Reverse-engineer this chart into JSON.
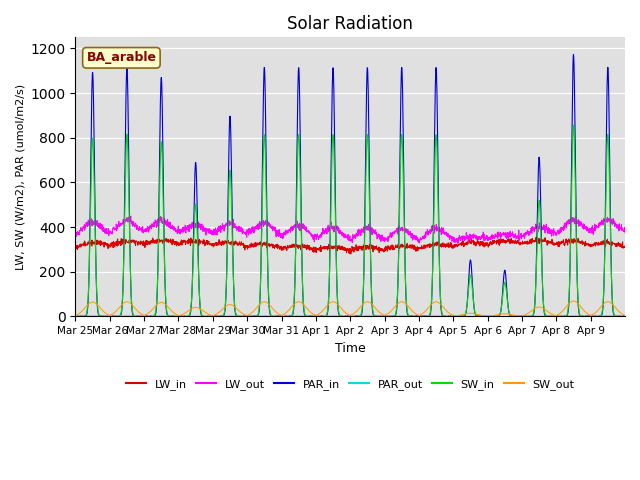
{
  "title": "Solar Radiation",
  "xlabel": "Time",
  "ylabel": "LW, SW (W/m2), PAR (umol/m2/s)",
  "annotation": "BA_arable",
  "ylim": [
    0,
    1250
  ],
  "background_color": "#e0e0e0",
  "series_colors": {
    "LW_in": "#dd0000",
    "LW_out": "#ff00ff",
    "PAR_in": "#0000dd",
    "PAR_out": "#00dddd",
    "SW_in": "#00dd00",
    "SW_out": "#ff9900"
  },
  "x_tick_labels": [
    "Mar 25",
    "Mar 26",
    "Mar 27",
    "Mar 28",
    "Mar 29",
    "Mar 30",
    "Mar 31",
    "Apr 1",
    "Apr 2",
    "Apr 3",
    "Apr 4",
    "Apr 5",
    "Apr 6",
    "Apr 7",
    "Apr 8",
    "Apr 9"
  ],
  "n_days": 16,
  "pts_per_day": 144,
  "cloud": [
    0.95,
    0.97,
    0.93,
    0.6,
    0.78,
    0.97,
    0.97,
    0.97,
    0.97,
    0.97,
    0.97,
    0.22,
    0.18,
    0.62,
    1.02,
    0.97
  ],
  "peak_PAR": 1150,
  "peak_SW": 840,
  "peak_SW_out": 68,
  "LW_in_base": 310,
  "LW_out_base": 355
}
